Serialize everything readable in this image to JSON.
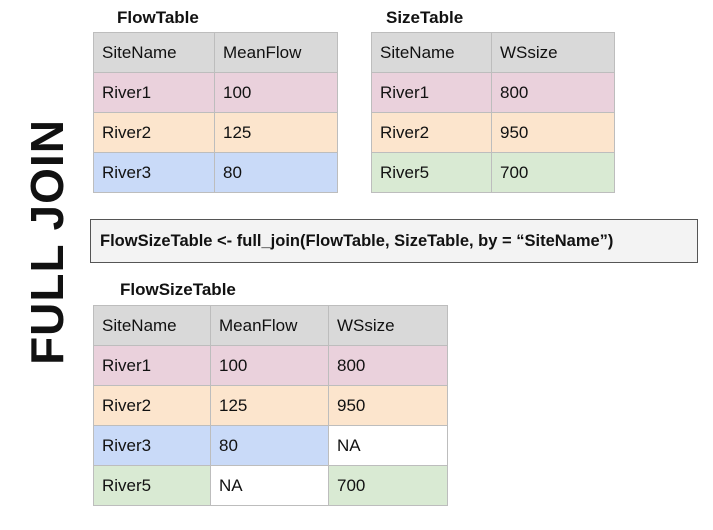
{
  "side_title": "FULL JOIN",
  "flow_table": {
    "caption": "FlowTable",
    "headers": [
      "SiteName",
      "MeanFlow"
    ],
    "rows": [
      [
        "River1",
        "100"
      ],
      [
        "River2",
        "125"
      ],
      [
        "River3",
        "80"
      ]
    ]
  },
  "size_table": {
    "caption": "SizeTable",
    "headers": [
      "SiteName",
      "WSsize"
    ],
    "rows": [
      [
        "River1",
        "800"
      ],
      [
        "River2",
        "950"
      ],
      [
        "River5",
        "700"
      ]
    ]
  },
  "code": "FlowSizeTable <- full_join(FlowTable, SizeTable, by = “SiteName”)",
  "result_table": {
    "caption": "FlowSizeTable",
    "headers": [
      "SiteName",
      "MeanFlow",
      "WSsize"
    ],
    "rows": [
      [
        "River1",
        "100",
        "800"
      ],
      [
        "River2",
        "125",
        "950"
      ],
      [
        "River3",
        "80",
        "NA"
      ],
      [
        "River5",
        "NA",
        "700"
      ]
    ]
  },
  "colors": {
    "header": "#d9d9d9",
    "river1": "#ead1dc",
    "river2": "#fce5cd",
    "river3": "#c9daf8",
    "river5": "#d9ead3",
    "code_box": "#f3f3f3"
  }
}
